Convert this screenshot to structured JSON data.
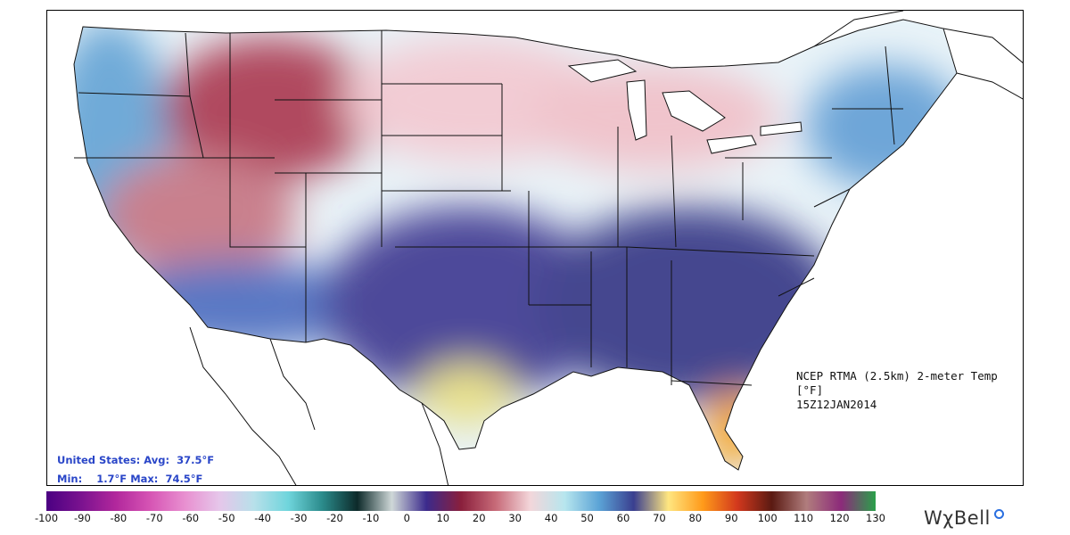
{
  "title": {
    "line1": "NCEP RTMA (2.5km) 2-meter Temp [°F]",
    "line2": "15Z12JAN2014"
  },
  "stats": {
    "avg_label": "United States: Avg:",
    "avg_value": "37.5°F",
    "min_label": "Min:",
    "min_value": "1.7°F",
    "max_label": "Max:",
    "max_value": "74.5°F"
  },
  "colorbar": {
    "ticks": [
      "-100",
      "-90",
      "-80",
      "-70",
      "-60",
      "-50",
      "-40",
      "-30",
      "-20",
      "-10",
      "0",
      "10",
      "20",
      "30",
      "40",
      "50",
      "60",
      "70",
      "80",
      "90",
      "100",
      "110",
      "120",
      "130"
    ],
    "stops": [
      "#4b0082",
      "#7a128f",
      "#b1279c",
      "#d654b4",
      "#e88fd0",
      "#e6c6ea",
      "#b8e0ea",
      "#6fd5dc",
      "#2a8a8a",
      "#0d2a2a",
      "#cfd8d8",
      "#3b2a8c",
      "#8a1f3c",
      "#c76a78",
      "#f3d6da",
      "#b7e6ee",
      "#5ba3d6",
      "#3a3f8f",
      "#ffe680",
      "#ff9a1a",
      "#d2381d",
      "#5a1a12",
      "#b07d7d",
      "#8c2a7a",
      "#2aa04a"
    ]
  },
  "brand": {
    "name": "WχBell"
  },
  "map": {
    "land_color": "#e9f3f8",
    "regions": [
      {
        "name": "pacific-northwest",
        "color": "#6faad8"
      },
      {
        "name": "northern-rockies",
        "color": "#b04a5e"
      },
      {
        "name": "great-basin",
        "color": "#c9808d"
      },
      {
        "name": "southwest-desert",
        "color": "#5a78c4"
      },
      {
        "name": "northern-plains",
        "color": "#f2ccd4"
      },
      {
        "name": "southern-plains",
        "color": "#4e4a9a"
      },
      {
        "name": "texas-gulf",
        "color": "#e8e08a"
      },
      {
        "name": "great-lakes",
        "color": "#f0c4cc"
      },
      {
        "name": "southeast",
        "color": "#44478f"
      },
      {
        "name": "florida",
        "color": "#f5a020"
      },
      {
        "name": "new-england",
        "color": "#6ea6d8"
      }
    ]
  }
}
